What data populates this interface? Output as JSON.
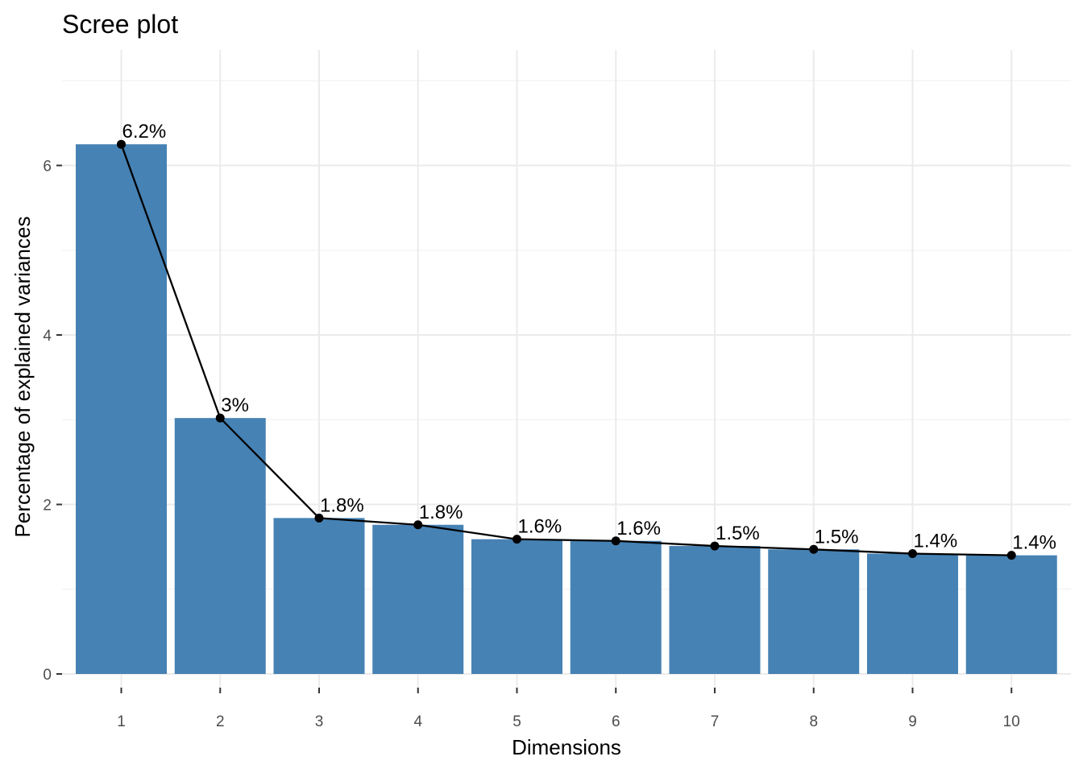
{
  "chart_data": {
    "type": "bar",
    "title": "Scree plot",
    "xlabel": "Dimensions",
    "ylabel": "Percentage of explained variances",
    "categories": [
      "1",
      "2",
      "3",
      "4",
      "5",
      "6",
      "7",
      "8",
      "9",
      "10"
    ],
    "values": [
      6.25,
      3.02,
      1.84,
      1.76,
      1.59,
      1.57,
      1.51,
      1.47,
      1.42,
      1.4
    ],
    "data_labels": [
      "6.2%",
      "3%",
      "1.8%",
      "1.8%",
      "1.6%",
      "1.6%",
      "1.5%",
      "1.5%",
      "1.4%",
      "1.4%"
    ],
    "yticks": [
      0,
      2,
      4,
      6
    ],
    "ytick_labels": [
      "0",
      "2",
      "4",
      "6"
    ],
    "ylim": [
      0,
      7.0
    ],
    "grid": true,
    "line_overlay": true,
    "colors": {
      "bar": "#4682B4",
      "line": "#000000",
      "point": "#000000"
    }
  }
}
